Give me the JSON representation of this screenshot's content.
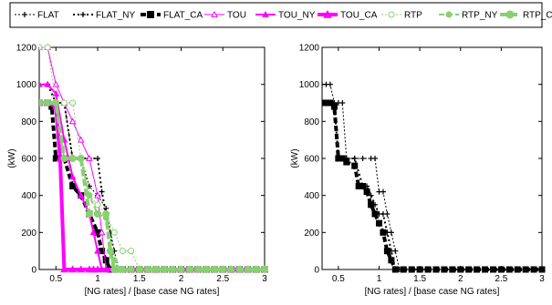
{
  "legend": {
    "entries": [
      {
        "id": "FLAT",
        "label": "FLAT"
      },
      {
        "id": "FLAT_NY",
        "label": "FLAT_NY"
      },
      {
        "id": "FLAT_CA",
        "label": "FLAT_CA"
      },
      {
        "id": "TOU",
        "label": "TOU"
      },
      {
        "id": "TOU_NY",
        "label": "TOU_NY"
      },
      {
        "id": "TOU_CA",
        "label": "TOU_CA"
      },
      {
        "id": "RTP",
        "label": "RTP"
      },
      {
        "id": "RTP_NY",
        "label": "RTP_NY"
      },
      {
        "id": "RTP_CA",
        "label": "RTP_CA"
      }
    ]
  },
  "styles": {
    "FLAT": {
      "color": "#000000",
      "dash": "2,2",
      "marker": "plus",
      "width": 1
    },
    "FLAT_NY": {
      "color": "#000000",
      "dash": "2,3",
      "marker": "plus",
      "width": 2
    },
    "FLAT_CA": {
      "color": "#000000",
      "dash": "6,3",
      "marker": "square",
      "width": 4
    },
    "TOU": {
      "color": "#ff00ff",
      "dash": "",
      "marker": "triangle-open",
      "width": 1
    },
    "TOU_NY": {
      "color": "#ff00ff",
      "dash": "",
      "marker": "triangle",
      "width": 2
    },
    "TOU_CA": {
      "color": "#ff00ff",
      "dash": "",
      "marker": "triangle",
      "width": 4
    },
    "RTP": {
      "color": "#88d070",
      "dash": "2,2",
      "marker": "circle-open",
      "width": 1
    },
    "RTP_NY": {
      "color": "#88d070",
      "dash": "6,3",
      "marker": "circle",
      "width": 2
    },
    "RTP_CA": {
      "color": "#88d070",
      "dash": "8,3",
      "marker": "circle",
      "width": 4
    }
  },
  "chart_data": [
    {
      "type": "line",
      "title": "",
      "xlabel": "[NG rates] / [base case NG rates]",
      "ylabel": "(kW)",
      "xlim": [
        0.3,
        3
      ],
      "ylim": [
        0,
        1200
      ],
      "xticks": [
        0.5,
        1,
        1.5,
        2,
        2.5,
        3
      ],
      "xtick_labels": [
        "0.5",
        "1",
        "1.5",
        "2",
        "2.5",
        "3"
      ],
      "yticks": [
        0,
        200,
        400,
        600,
        800,
        1000,
        1200
      ],
      "ytick_labels": [
        "0",
        "200",
        "400",
        "600",
        "800",
        "1000",
        "1200"
      ],
      "grid": false,
      "series": [
        {
          "id": "FLAT",
          "x": [
            0.3,
            0.4,
            0.5,
            0.6,
            0.7,
            0.8,
            0.9,
            1.0,
            1.1,
            1.2,
            1.25,
            1.3,
            1.4,
            1.5,
            1.6,
            1.7,
            1.8,
            1.9,
            2.0,
            2.1,
            2.2,
            2.3,
            2.4,
            2.5,
            2.6,
            2.7,
            2.8,
            2.9,
            3.0
          ],
          "y": [
            900,
            900,
            900,
            900,
            600,
            600,
            450,
            400,
            330,
            100,
            0,
            0,
            0,
            0,
            0,
            0,
            0,
            0,
            0,
            0,
            0,
            0,
            0,
            0,
            0,
            0,
            0,
            0,
            0
          ]
        },
        {
          "id": "FLAT_NY",
          "x": [
            0.3,
            0.4,
            0.5,
            0.6,
            0.7,
            0.8,
            0.9,
            1.0,
            1.05,
            1.1,
            1.15,
            1.2,
            1.3,
            1.4,
            1.5,
            1.6,
            1.7,
            1.8,
            1.9,
            2.0,
            2.1,
            2.2,
            2.3,
            2.4,
            2.5,
            2.6,
            2.7,
            2.8,
            2.9,
            3.0
          ],
          "y": [
            1000,
            1000,
            900,
            900,
            600,
            600,
            600,
            600,
            420,
            300,
            200,
            0,
            0,
            0,
            0,
            0,
            0,
            0,
            0,
            0,
            0,
            0,
            0,
            0,
            0,
            0,
            0,
            0,
            0,
            0
          ]
        },
        {
          "id": "FLAT_CA",
          "x": [
            0.3,
            0.4,
            0.45,
            0.5,
            0.6,
            0.7,
            0.8,
            0.9,
            1.0,
            1.05,
            1.1,
            1.15,
            1.2,
            1.3,
            1.4,
            1.5,
            1.6,
            1.7,
            1.8,
            1.9,
            2.0,
            2.1,
            2.2,
            2.3,
            2.4,
            2.5,
            2.6,
            2.7,
            2.8,
            2.9,
            3.0
          ],
          "y": [
            900,
            900,
            880,
            600,
            600,
            450,
            400,
            300,
            200,
            100,
            50,
            0,
            0,
            0,
            0,
            0,
            0,
            0,
            0,
            0,
            0,
            0,
            0,
            0,
            0,
            0,
            0,
            0,
            0,
            0,
            0
          ]
        },
        {
          "id": "TOU",
          "x": [
            0.3,
            0.4,
            0.5,
            0.6,
            0.7,
            0.8,
            0.9,
            1.0,
            1.05,
            1.1,
            1.2,
            1.3,
            1.4,
            1.5,
            1.6,
            1.7,
            1.8,
            1.9,
            2.0,
            2.1,
            2.2,
            2.3,
            2.4,
            2.5,
            2.6,
            2.7,
            2.8,
            2.9,
            3.0
          ],
          "y": [
            1200,
            1200,
            1000,
            900,
            800,
            700,
            600,
            400,
            200,
            0,
            0,
            0,
            0,
            0,
            0,
            0,
            0,
            0,
            0,
            0,
            0,
            0,
            0,
            0,
            0,
            0,
            0,
            0,
            0
          ]
        },
        {
          "id": "TOU_NY",
          "x": [
            0.3,
            0.4,
            0.5,
            0.6,
            0.65,
            0.7,
            0.8,
            0.9,
            0.95,
            1.0,
            1.05,
            1.1,
            1.2,
            1.3,
            1.4,
            1.5,
            1.6,
            1.7,
            1.8,
            1.9,
            2.0,
            2.1,
            2.2,
            2.3,
            2.4,
            2.5,
            2.6,
            2.7,
            2.8,
            2.9,
            3.0
          ],
          "y": [
            1000,
            1000,
            950,
            700,
            600,
            500,
            400,
            300,
            200,
            100,
            0,
            0,
            0,
            0,
            0,
            0,
            0,
            0,
            0,
            0,
            0,
            0,
            0,
            0,
            0,
            0,
            0,
            0,
            0,
            0,
            0
          ]
        },
        {
          "id": "TOU_CA",
          "x": [
            0.3,
            0.4,
            0.5,
            0.55,
            0.6,
            0.7,
            0.8,
            0.9,
            0.95,
            1.0,
            1.1,
            1.2,
            1.3,
            1.4,
            1.5,
            1.6,
            1.7,
            1.8,
            1.9,
            2.0,
            2.1,
            2.2,
            2.3,
            2.4,
            2.5,
            2.6,
            2.7,
            2.8,
            2.9,
            3.0
          ],
          "y": [
            900,
            900,
            880,
            600,
            0,
            0,
            0,
            0,
            0,
            0,
            0,
            0,
            0,
            0,
            0,
            0,
            0,
            0,
            0,
            0,
            0,
            0,
            0,
            0,
            0,
            0,
            0,
            0,
            0,
            0
          ]
        },
        {
          "id": "RTP",
          "x": [
            0.3,
            0.4,
            0.5,
            0.6,
            0.7,
            0.8,
            0.9,
            1.0,
            1.1,
            1.2,
            1.3,
            1.4,
            1.5,
            1.6,
            1.7,
            1.8,
            1.9,
            2.0,
            2.1,
            2.2,
            2.3,
            2.4,
            2.5,
            2.6,
            2.7,
            2.8,
            2.9,
            3.0
          ],
          "y": [
            1200,
            1200,
            900,
            900,
            900,
            600,
            400,
            350,
            300,
            200,
            100,
            100,
            0,
            0,
            0,
            0,
            0,
            0,
            0,
            0,
            0,
            0,
            0,
            0,
            0,
            0,
            0,
            0
          ]
        },
        {
          "id": "RTP_NY",
          "x": [
            0.3,
            0.4,
            0.5,
            0.6,
            0.7,
            0.8,
            0.9,
            1.0,
            1.1,
            1.2,
            1.25,
            1.3,
            1.4,
            1.5,
            1.6,
            1.7,
            1.8,
            1.9,
            2.0,
            2.1,
            2.2,
            2.3,
            2.4,
            2.5,
            2.6,
            2.7,
            2.8,
            2.9,
            3.0
          ],
          "y": [
            900,
            900,
            900,
            600,
            600,
            600,
            400,
            300,
            280,
            50,
            0,
            0,
            0,
            0,
            0,
            0,
            0,
            0,
            0,
            0,
            0,
            0,
            0,
            0,
            0,
            0,
            0,
            0,
            0
          ]
        },
        {
          "id": "RTP_CA",
          "x": [
            0.3,
            0.4,
            0.5,
            0.6,
            0.7,
            0.8,
            0.9,
            1.0,
            1.1,
            1.15,
            1.2,
            1.3,
            1.4,
            1.5,
            1.6,
            1.7,
            1.8,
            1.9,
            2.0,
            2.1,
            2.2,
            2.3,
            2.4,
            2.5,
            2.6,
            2.7,
            2.8,
            2.9,
            3.0
          ],
          "y": [
            900,
            900,
            900,
            600,
            600,
            600,
            300,
            300,
            300,
            100,
            0,
            0,
            0,
            0,
            0,
            0,
            0,
            0,
            0,
            0,
            0,
            0,
            0,
            0,
            0,
            0,
            0,
            0,
            0
          ]
        }
      ]
    },
    {
      "type": "line",
      "title": "",
      "xlabel": "[NG rates] / [base case NG rates]",
      "ylabel": "(kW)",
      "xlim": [
        0.3,
        3
      ],
      "ylim": [
        0,
        1200
      ],
      "xticks": [
        0.5,
        1,
        1.5,
        2,
        2.5,
        3
      ],
      "xtick_labels": [
        "0.5",
        "1",
        "1.5",
        "2",
        "2.5",
        "3"
      ],
      "yticks": [
        0,
        200,
        400,
        600,
        800,
        1000,
        1200
      ],
      "ytick_labels": [
        "0",
        "200",
        "400",
        "600",
        "800",
        "1000",
        "1200"
      ],
      "grid": false,
      "series": [
        {
          "id": "FLAT",
          "x": [
            0.3,
            0.35,
            0.4,
            0.45,
            0.5,
            0.55,
            0.6,
            0.7,
            0.8,
            0.9,
            0.95,
            1.0,
            1.05,
            1.1,
            1.15,
            1.2,
            1.25,
            1.3,
            1.4,
            1.5,
            1.6,
            1.7,
            1.8,
            1.9,
            2.0,
            2.1,
            2.2,
            2.3,
            2.4,
            2.5,
            2.6,
            2.7,
            2.8,
            2.9,
            3.0
          ],
          "y": [
            1000,
            1000,
            1000,
            900,
            900,
            900,
            600,
            600,
            600,
            600,
            600,
            420,
            420,
            300,
            200,
            100,
            0,
            0,
            0,
            0,
            0,
            0,
            0,
            0,
            0,
            0,
            0,
            0,
            0,
            0,
            0,
            0,
            0,
            0,
            0
          ]
        },
        {
          "id": "FLAT_NY",
          "x": [
            0.3,
            0.35,
            0.4,
            0.45,
            0.5,
            0.55,
            0.6,
            0.7,
            0.8,
            0.85,
            0.9,
            0.95,
            1.0,
            1.05,
            1.1,
            1.15,
            1.2,
            1.3,
            1.4,
            1.5,
            1.6,
            1.7,
            1.8,
            1.9,
            2.0,
            2.1,
            2.2,
            2.3,
            2.4,
            2.5,
            2.6,
            2.7,
            2.8,
            2.9,
            3.0
          ],
          "y": [
            900,
            900,
            900,
            900,
            600,
            600,
            600,
            600,
            450,
            450,
            400,
            350,
            300,
            300,
            200,
            100,
            0,
            0,
            0,
            0,
            0,
            0,
            0,
            0,
            0,
            0,
            0,
            0,
            0,
            0,
            0,
            0,
            0,
            0,
            0
          ]
        },
        {
          "id": "FLAT_CA",
          "x": [
            0.3,
            0.35,
            0.4,
            0.45,
            0.5,
            0.55,
            0.6,
            0.7,
            0.75,
            0.8,
            0.85,
            0.9,
            0.95,
            1.0,
            1.05,
            1.1,
            1.15,
            1.2,
            1.3,
            1.4,
            1.5,
            1.6,
            1.7,
            1.8,
            1.9,
            2.0,
            2.1,
            2.2,
            2.3,
            2.4,
            2.5,
            2.6,
            2.7,
            2.8,
            2.9,
            3.0
          ],
          "y": [
            900,
            900,
            900,
            880,
            600,
            600,
            580,
            560,
            450,
            450,
            420,
            350,
            300,
            250,
            200,
            100,
            50,
            0,
            0,
            0,
            0,
            0,
            0,
            0,
            0,
            0,
            0,
            0,
            0,
            0,
            0,
            0,
            0,
            0,
            0,
            0
          ]
        }
      ]
    }
  ]
}
